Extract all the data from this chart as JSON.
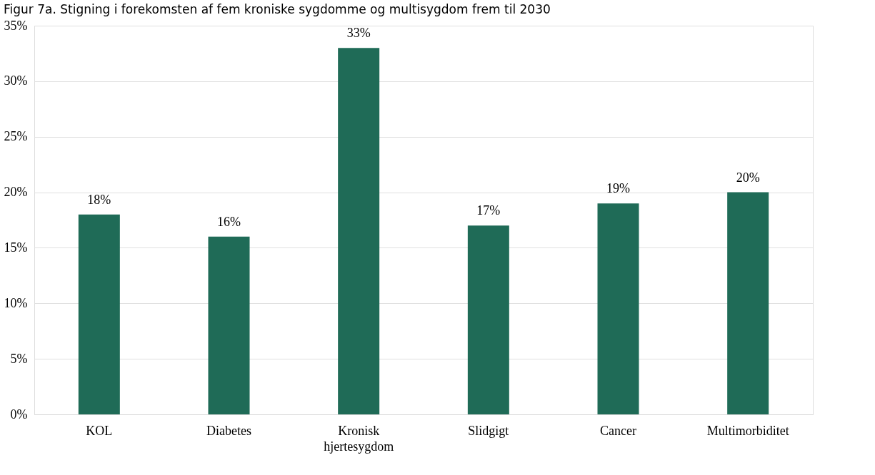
{
  "chart_data": {
    "type": "bar",
    "title": "Figur 7a. Stigning i forekomsten af fem kroniske sygdomme og multisygdom frem til 2030",
    "categories": [
      "KOL",
      "Diabetes",
      "Kronisk hjertesygdom",
      "Slidgigt",
      "Cancer",
      "Multimorbiditet"
    ],
    "values": [
      18,
      16,
      33,
      17,
      19,
      20
    ],
    "value_labels": [
      "18%",
      "16%",
      "33%",
      "17%",
      "19%",
      "20%"
    ],
    "color": "#1f6b57",
    "ylim": [
      0,
      35
    ],
    "yticks": [
      {
        "value": 0,
        "label": "0%"
      },
      {
        "value": 5,
        "label": "5%"
      },
      {
        "value": 10,
        "label": "10%"
      },
      {
        "value": 15,
        "label": "15%"
      },
      {
        "value": 20,
        "label": "20%"
      },
      {
        "value": 25,
        "label": "25%"
      },
      {
        "value": 30,
        "label": "30%"
      },
      {
        "value": 35,
        "label": "35%"
      }
    ],
    "grid": "y"
  }
}
